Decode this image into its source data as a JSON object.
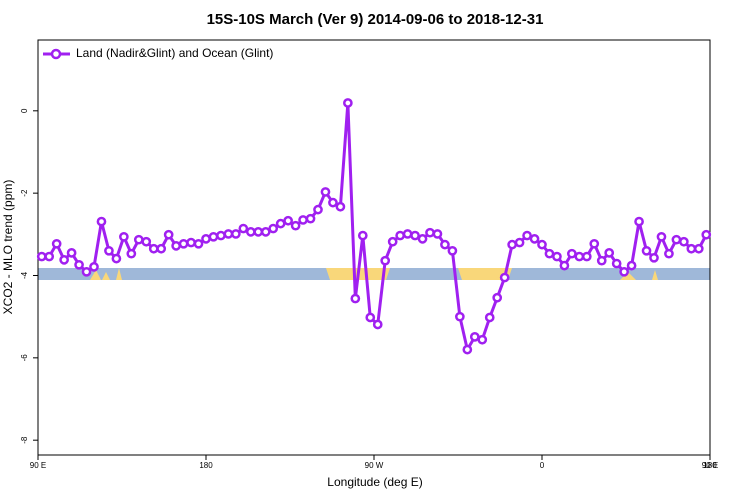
{
  "chart_data": {
    "type": "line",
    "title": "15S-10S March (Ver 9)   2014-09-06 to 2018-12-31",
    "xlabel": "Longitude (deg E)",
    "ylabel": "XCO2 - MLO trend (ppm)",
    "xlim": [
      90,
      450
    ],
    "xticks": [
      {
        "value": 90,
        "label": "90 E"
      },
      180,
      {
        "value": 270,
        "label": "90 W"
      },
      {
        "value": 360,
        "label": "0"
      },
      {
        "value": 450,
        "label": "90 E"
      },
      {
        "value": 540,
        "label": "180"
      }
    ],
    "ylim": [
      -8.36,
      1.72
    ],
    "yticks": [
      -8,
      -6,
      -4,
      -2,
      0
    ],
    "legend": "top-left",
    "series": [
      {
        "name": "Land (Nadir&Glint) and Ocean (Glint)",
        "color": "#a020f0",
        "x": [
          92,
          96,
          100,
          104,
          108,
          112,
          116,
          120,
          124,
          128,
          132,
          136,
          140,
          144,
          148,
          152,
          156,
          160,
          164,
          168,
          172,
          176,
          180,
          184,
          188,
          192,
          196,
          200,
          204,
          208,
          212,
          216,
          220,
          224,
          228,
          232,
          236,
          240,
          244,
          248,
          252,
          256,
          260,
          264,
          268,
          272,
          276,
          280,
          284,
          288,
          292,
          296,
          300,
          304,
          308,
          312,
          316,
          320,
          324,
          328,
          332,
          336,
          340,
          344,
          348,
          352,
          356,
          360,
          364,
          368,
          372,
          376,
          380,
          384,
          388,
          392,
          396,
          400,
          404,
          408,
          412,
          416,
          420,
          424,
          428,
          432,
          436,
          440,
          444,
          448
        ],
        "values": [
          -3.54,
          -3.54,
          -3.23,
          -3.62,
          -3.45,
          -3.74,
          -3.91,
          -3.79,
          -2.69,
          -3.4,
          -3.59,
          -3.06,
          -3.47,
          -3.13,
          -3.18,
          -3.35,
          -3.35,
          -3.01,
          -3.28,
          -3.23,
          -3.2,
          -3.23,
          -3.11,
          -3.06,
          -3.03,
          -2.99,
          -2.99,
          -2.86,
          -2.94,
          -2.94,
          -2.94,
          -2.86,
          -2.74,
          -2.67,
          -2.79,
          -2.65,
          -2.62,
          -2.4,
          -1.97,
          -2.23,
          -2.33,
          0.19,
          -4.56,
          -3.03,
          -5.02,
          -5.19,
          -3.64,
          -3.18,
          -3.03,
          -2.99,
          -3.03,
          -3.11,
          -2.96,
          -2.99,
          -3.25,
          -3.4,
          -5.0,
          -5.8,
          -5.49,
          -5.56,
          -5.02,
          -4.54,
          -4.05,
          -3.25,
          -3.2,
          -3.03,
          -3.11,
          -3.25,
          -3.47,
          -3.54,
          -3.76,
          -3.47,
          -3.54,
          -3.54,
          -3.23,
          -3.64,
          -3.45,
          -3.71,
          -3.91,
          -3.76,
          -2.69,
          -3.4,
          -3.57,
          -3.06,
          -3.47,
          -3.13,
          -3.18,
          -3.35,
          -3.35,
          -3.01
        ]
      }
    ]
  }
}
